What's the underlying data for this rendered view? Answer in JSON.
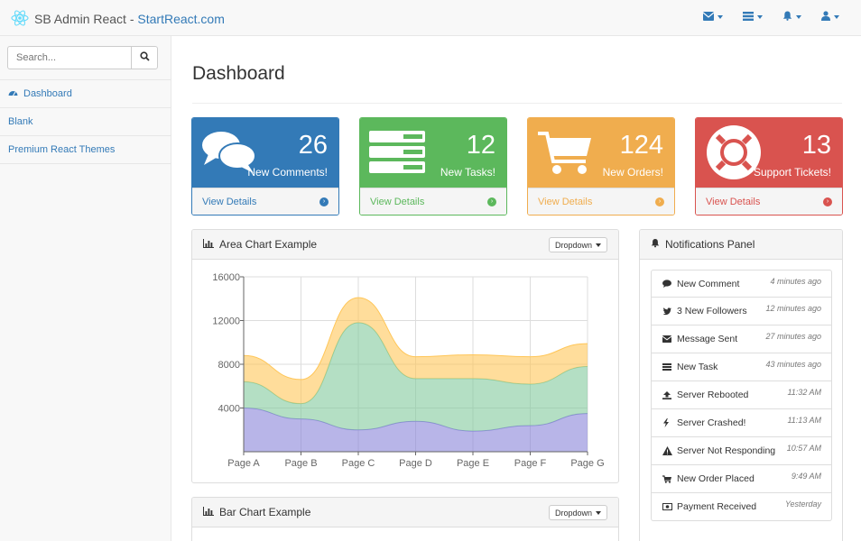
{
  "header": {
    "brand": "SB Admin React",
    "separator": " - ",
    "site": "StartReact.com",
    "nav": [
      "envelope-icon",
      "tasks-icon",
      "bell-icon",
      "user-icon"
    ]
  },
  "sidebar": {
    "search_placeholder": "Search...",
    "items": [
      {
        "label": "Dashboard",
        "icon": "dashboard-icon"
      },
      {
        "label": "Blank"
      },
      {
        "label": "Premium React Themes"
      }
    ]
  },
  "page": {
    "title": "Dashboard"
  },
  "stats": [
    {
      "value": "26",
      "label": "New Comments!",
      "link": "View Details",
      "color": "#337ab7",
      "icon": "comments-icon"
    },
    {
      "value": "12",
      "label": "New Tasks!",
      "link": "View Details",
      "color": "#5cb85c",
      "icon": "tasks-icon"
    },
    {
      "value": "124",
      "label": "New Orders!",
      "link": "View Details",
      "color": "#f0ad4e",
      "icon": "cart-icon"
    },
    {
      "value": "13",
      "label": "Support Tickets!",
      "link": "View Details",
      "color": "#d9534f",
      "icon": "lifebuoy-icon"
    }
  ],
  "area_panel": {
    "title": "Area Chart Example",
    "dropdown": "Dropdown"
  },
  "bar_panel": {
    "title": "Bar Chart Example",
    "dropdown": "Dropdown"
  },
  "notifications": {
    "title": "Notifications Panel",
    "items": [
      {
        "label": "New Comment",
        "time": "4 minutes ago",
        "icon": "comment-icon"
      },
      {
        "label": "3 New Followers",
        "time": "12 minutes ago",
        "icon": "twitter-icon"
      },
      {
        "label": "Message Sent",
        "time": "27 minutes ago",
        "icon": "envelope-icon"
      },
      {
        "label": "New Task",
        "time": "43 minutes ago",
        "icon": "tasks-icon"
      },
      {
        "label": "Server Rebooted",
        "time": "11:32 AM",
        "icon": "upload-icon"
      },
      {
        "label": "Server Crashed!",
        "time": "11:13 AM",
        "icon": "bolt-icon"
      },
      {
        "label": "Server Not Responding",
        "time": "10:57 AM",
        "icon": "warning-icon"
      },
      {
        "label": "New Order Placed",
        "time": "9:49 AM",
        "icon": "cart-icon"
      },
      {
        "label": "Payment Received",
        "time": "Yesterday",
        "icon": "money-icon"
      }
    ]
  },
  "chart_data": {
    "type": "area",
    "categories": [
      "Page A",
      "Page B",
      "Page C",
      "Page D",
      "Page E",
      "Page F",
      "Page G"
    ],
    "series": [
      {
        "values": [
          4000,
          3000,
          2000,
          2780,
          1890,
          2390,
          3490
        ],
        "color": "#8884d8"
      },
      {
        "values": [
          2400,
          1398,
          9800,
          3908,
          4800,
          3800,
          4300
        ],
        "color": "#82ca9d"
      },
      {
        "values": [
          2400,
          2210,
          2290,
          2000,
          2181,
          2500,
          2100
        ],
        "color": "#ffc658"
      }
    ],
    "stacked": true,
    "ylim": [
      0,
      16000
    ],
    "yticks": [
      4000,
      8000,
      12000,
      16000
    ],
    "grid": true
  }
}
